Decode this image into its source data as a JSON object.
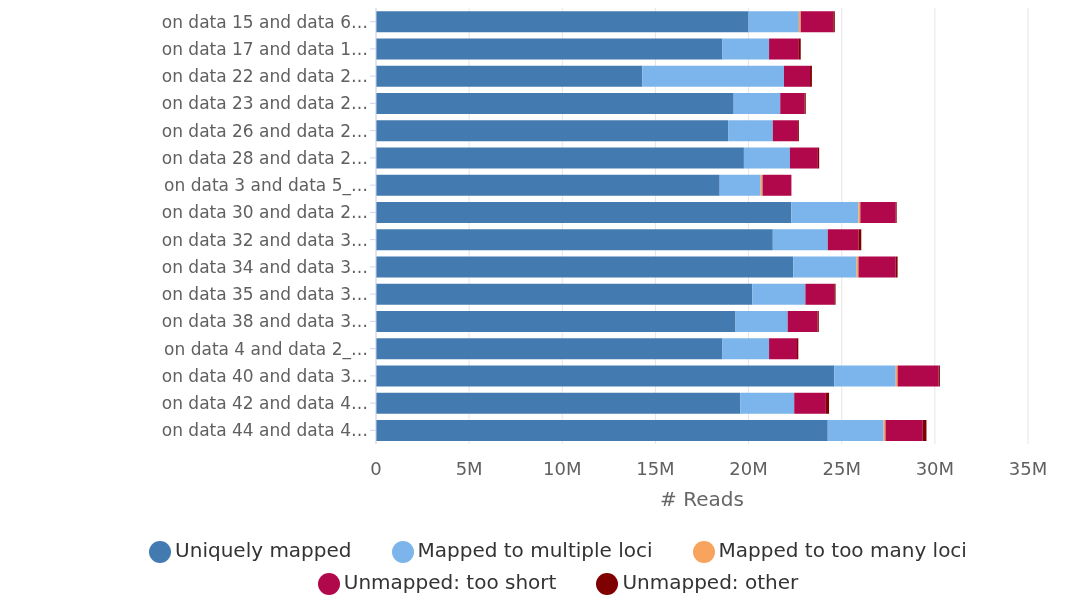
{
  "chart_data": {
    "type": "bar",
    "orientation": "horizontal",
    "stacked": true,
    "xlabel": "# Reads",
    "categories": [
      "on data 15 and data 6…",
      "on data 17 and data 1…",
      "on data 22 and data 2…",
      "on data 23 and data 2…",
      "on data 26 and data 2…",
      "on data 28 and data 2…",
      "on data 3 and data 5_…",
      "on data 30 and data 2…",
      "on data 32 and data 3…",
      "on data 34 and data 3…",
      "on data 35 and data 3…",
      "on data 38 and data 3…",
      "on data 4 and data 2_…",
      "on data 40 and data 3…",
      "on data 42 and data 4…",
      "on data 44 and data 4…"
    ],
    "series": [
      {
        "name": "Uniquely mapped",
        "color": "#437bb1",
        "values": [
          20000000,
          18600000,
          14300000,
          19200000,
          18900000,
          19750000,
          18450000,
          22300000,
          21300000,
          22400000,
          20200000,
          19300000,
          18600000,
          24600000,
          19550000,
          24250000
        ]
      },
      {
        "name": "Mapped to multiple loci",
        "color": "#7cb5ec",
        "values": [
          2700000,
          2500000,
          7600000,
          2500000,
          2400000,
          2470000,
          2200000,
          3600000,
          2950000,
          3400000,
          2850000,
          2800000,
          2500000,
          3300000,
          2900000,
          3000000
        ]
      },
      {
        "name": "Mapped to too many loci",
        "color": "#f7a35c",
        "values": [
          100000,
          0,
          0,
          0,
          0,
          0,
          100000,
          100000,
          0,
          100000,
          0,
          0,
          0,
          100000,
          0,
          100000
        ]
      },
      {
        "name": "Unmapped: too short",
        "color": "#b1084c",
        "values": [
          1750000,
          1600000,
          1400000,
          1300000,
          1350000,
          1500000,
          1550000,
          1900000,
          1650000,
          2000000,
          1550000,
          1600000,
          1500000,
          2200000,
          1700000,
          2000000
        ]
      },
      {
        "name": "Unmapped: other",
        "color": "#7f0000",
        "values": [
          80000,
          100000,
          100000,
          70000,
          50000,
          70000,
          null,
          50000,
          150000,
          100000,
          70000,
          70000,
          70000,
          70000,
          170000,
          200000
        ]
      }
    ],
    "xlim": [
      0,
      35000000
    ],
    "xticks": [
      0,
      {
        "value": 5000000,
        "label": "5M"
      },
      {
        "value": 10000000,
        "label": "10M"
      },
      {
        "value": 15000000,
        "label": "15M"
      },
      {
        "value": 20000000,
        "label": "20M"
      },
      {
        "value": 25000000,
        "label": "25M"
      },
      {
        "value": 30000000,
        "label": "30M"
      },
      {
        "value": 35000000,
        "label": "35M"
      }
    ],
    "grid": "x",
    "legend": "bottom"
  }
}
